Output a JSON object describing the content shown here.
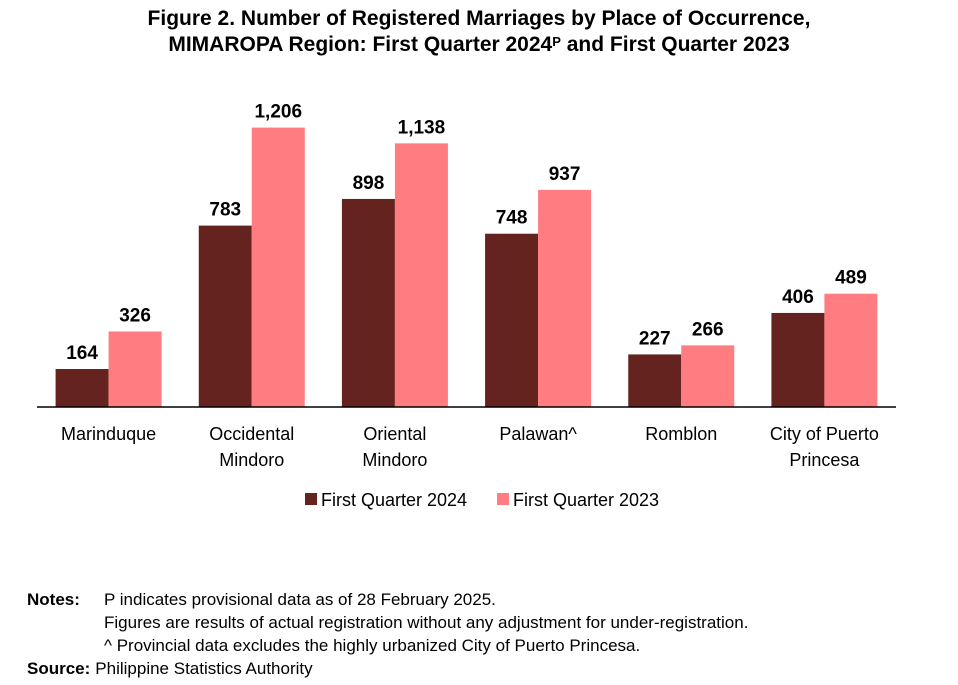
{
  "title": {
    "line1": "Figure 2. Number of Registered Marriages by Place of Occurrence,",
    "line2_pre": "MIMAROPA Region: First Quarter 2024",
    "line2_sup": "P",
    "line2_post": " and First Quarter 2023"
  },
  "chart_data": {
    "type": "bar",
    "title": "Figure 2. Number of Registered Marriages by Place of Occurrence, MIMAROPA Region: First Quarter 2024P and First Quarter 2023",
    "categories": [
      [
        "Marinduque"
      ],
      [
        "Occidental",
        "Mindoro"
      ],
      [
        "Oriental",
        "Mindoro"
      ],
      [
        "Palawan^"
      ],
      [
        "Romblon"
      ],
      [
        "City of Puerto",
        "Princesa"
      ]
    ],
    "series": [
      {
        "name": "First Quarter 2024",
        "color": "#65231f",
        "values": [
          164,
          783,
          898,
          748,
          227,
          406
        ],
        "labels": [
          "164",
          "783",
          "898",
          "748",
          "227",
          "406"
        ]
      },
      {
        "name": "First Quarter 2023",
        "color": "#ff7c80",
        "values": [
          326,
          1206,
          1138,
          937,
          266,
          489
        ],
        "labels": [
          "326",
          "1,206",
          "1,138",
          "937",
          "266",
          "489"
        ]
      }
    ],
    "ylim": [
      0,
      1400
    ],
    "xlabel": "",
    "ylabel": "",
    "grid": false,
    "legend_position": "bottom"
  },
  "notes": {
    "label": "Notes:",
    "lines": [
      "P indicates provisional data as of 28 February 2025.",
      "Figures are results of actual registration without any adjustment for under-registration.",
      "^ Provincial data excludes the highly urbanized City of Puerto Princesa."
    ]
  },
  "source": {
    "label": "Source:",
    "text": "Philippine Statistics Authority"
  }
}
